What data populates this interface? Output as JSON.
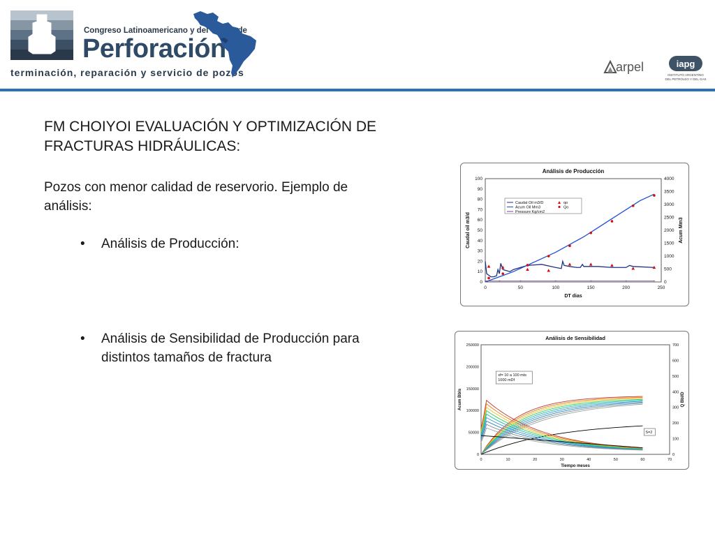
{
  "header": {
    "congreso": "Congreso Latinoamericano y del Caribe de",
    "brand": "Perforación",
    "tagline": "terminación, reparación y servicio de pozos",
    "arpel": "arpel",
    "iapg": "iapg",
    "iapg_sub1": "INSTITUTO ARGENTINO",
    "iapg_sub2": "DEL PETRÓLEO Y DEL GAS"
  },
  "slide": {
    "title": "FM CHOIYOI EVALUACIÓN Y OPTIMIZACIÓN DE FRACTURAS HIDRÁULICAS:",
    "intro": "Pozos con menor calidad de reservorio. Ejemplo de análisis:",
    "bullet1": "Análisis de Producción:",
    "bullet2": "Análisis de Sensibilidad de Producción para distintos tamaños de fractura",
    "bullet_symbol": "•"
  },
  "chart_data": [
    {
      "type": "line",
      "title": "Análisis de Producción",
      "xlabel": "DT dias",
      "ylabel": "Caudal oil m3/d",
      "y2label": "Acum Mm3",
      "xlim": [
        0,
        250
      ],
      "ylim": [
        0,
        100
      ],
      "y2lim": [
        0,
        4000
      ],
      "xticks": [
        "0",
        "50",
        "100",
        "150",
        "200",
        "250"
      ],
      "yticks": [
        "0",
        "10",
        "20",
        "30",
        "40",
        "50",
        "60",
        "70",
        "80",
        "90",
        "100"
      ],
      "y2ticks": [
        "0",
        "500",
        "1000",
        "1500",
        "2000",
        "2500",
        "3000",
        "3500",
        "4000"
      ],
      "legend": [
        "Caudal Oil m3/D",
        "Acum Oil Mm3",
        "Pressure Kg/cm2",
        "qo",
        "Qo"
      ],
      "colors": {
        "caudal": "#1f2f86",
        "acum": "#1f4fd0",
        "pressure": "#7a3f9a",
        "qo": "#d01010",
        "Qo": "#d01010"
      },
      "series": [
        {
          "name": "Caudal Oil m3/D",
          "x": [
            0,
            2,
            4,
            8,
            12,
            16,
            18,
            20,
            22,
            25,
            30,
            35,
            40,
            45,
            50,
            55,
            60,
            80,
            100,
            108,
            110,
            112,
            120,
            130,
            135,
            138,
            140,
            160,
            180,
            200,
            205,
            210,
            240
          ],
          "y": [
            20,
            8,
            7,
            5,
            5,
            6,
            12,
            8,
            18,
            12,
            11,
            10,
            12,
            13,
            14,
            15,
            16,
            17,
            14,
            13,
            20,
            16,
            15,
            14,
            14,
            17,
            15,
            15,
            14,
            14,
            16,
            15,
            14
          ]
        },
        {
          "name": "Acum Oil Mm3",
          "x": [
            0,
            20,
            40,
            60,
            80,
            100,
            120,
            140,
            160,
            180,
            200,
            220,
            240
          ],
          "y": [
            0,
            200,
            400,
            650,
            900,
            1150,
            1450,
            1750,
            2100,
            2450,
            2800,
            3150,
            3400
          ]
        },
        {
          "name": "Pressure Kg/cm2",
          "x": [
            0,
            20,
            50,
            100,
            150,
            200,
            240
          ],
          "y": [
            1,
            1,
            1,
            1,
            1,
            1,
            1
          ]
        },
        {
          "name": "qo",
          "x": [
            5,
            25,
            60,
            90,
            120,
            150,
            180,
            210,
            240
          ],
          "y": [
            15,
            14,
            12,
            11,
            17,
            17,
            16,
            13,
            14
          ]
        },
        {
          "name": "Qo",
          "x": [
            5,
            25,
            60,
            90,
            120,
            150,
            180,
            210,
            240
          ],
          "y": [
            150,
            320,
            650,
            1000,
            1400,
            1900,
            2350,
            2950,
            3350
          ]
        }
      ]
    },
    {
      "type": "line",
      "title": "Análisis de Sensibilidad",
      "xlabel": "Tiempo meses",
      "ylabel": "Acum Bbls",
      "y2label": "Q Bbl/D",
      "xlim": [
        0,
        70
      ],
      "ylim": [
        0,
        250000
      ],
      "y2lim": [
        0,
        700
      ],
      "xticks": [
        "0",
        "10",
        "20",
        "30",
        "40",
        "50",
        "60",
        "70"
      ],
      "yticks": [
        "0",
        "50000",
        "100000",
        "150000",
        "200000",
        "250000"
      ],
      "y2ticks": [
        "0",
        "100",
        "200",
        "300",
        "400",
        "500",
        "600",
        "700"
      ],
      "annotation1_line1": "xf= 10 a 100 mts",
      "annotation1_line2": "1000 mDf",
      "annotation2": "S=2",
      "curve_colors": [
        "#c0392b",
        "#e67e22",
        "#f1c40f",
        "#2ecc71",
        "#1abc9c",
        "#3498db",
        "#2e86c1",
        "#7f8c8d",
        "#95a5a6",
        "#000000"
      ]
    }
  ]
}
